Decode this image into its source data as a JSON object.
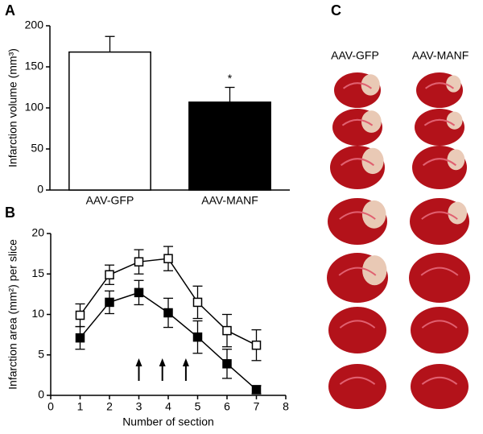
{
  "panel_labels": [
    "A",
    "B",
    "C"
  ],
  "slices_panel": {
    "columns": [
      "AAV-GFP",
      "AAV-MANF"
    ]
  },
  "chart_data": [
    {
      "type": "bar",
      "ylabel": "Infarction volume (mm³)",
      "categories": [
        "AAV-GFP",
        "AAV-MANF"
      ],
      "values": [
        168,
        107
      ],
      "errors": [
        19,
        18
      ],
      "colors": [
        "#ffffff",
        "#000000"
      ],
      "annotation": "*",
      "ylim": [
        0,
        200
      ],
      "yticks": [
        0,
        50,
        100,
        150,
        200
      ]
    },
    {
      "type": "line",
      "xlabel": "Number of section",
      "ylabel": "Infarction area (mm²) per slice",
      "x": [
        1,
        2,
        3,
        4,
        5,
        6,
        7
      ],
      "series": [
        {
          "color": "#000000",
          "marker_fill": "#ffffff",
          "values": [
            9.9,
            14.9,
            16.5,
            16.9,
            11.5,
            8.0,
            6.2
          ],
          "errors": [
            1.4,
            1.2,
            1.5,
            1.5,
            2.0,
            2.0,
            1.9
          ]
        },
        {
          "color": "#000000",
          "marker_fill": "#000000",
          "values": [
            7.1,
            11.5,
            12.7,
            10.2,
            7.2,
            3.9,
            0.7
          ],
          "errors": [
            1.4,
            1.4,
            1.5,
            1.8,
            2.0,
            1.8,
            0.5
          ]
        }
      ],
      "arrows_x": [
        3,
        3.8,
        4.6
      ],
      "xlim": [
        0,
        8
      ],
      "xticks": [
        0,
        1,
        2,
        3,
        4,
        5,
        6,
        7,
        8
      ],
      "ylim": [
        0,
        20
      ],
      "yticks": [
        0,
        5,
        10,
        15,
        20
      ]
    }
  ]
}
